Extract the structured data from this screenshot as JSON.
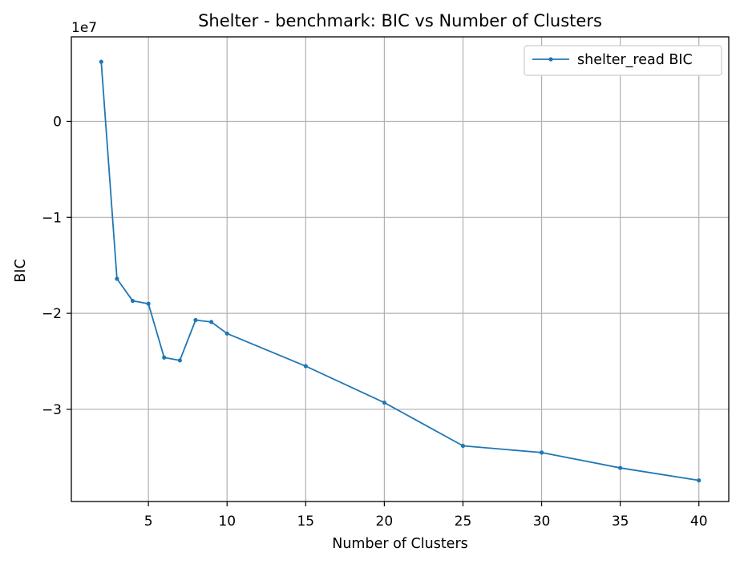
{
  "chart_data": {
    "type": "line",
    "title": "Shelter - benchmark: BIC vs Number of Clusters",
    "xlabel": "Number of Clusters",
    "ylabel": "BIC",
    "y_offset_label": "1e7",
    "xlim": [
      0.1,
      41.9
    ],
    "ylim": [
      -39.6,
      8.8
    ],
    "x_ticks": [
      5,
      10,
      15,
      20,
      25,
      30,
      35,
      40
    ],
    "x_tick_labels": [
      "5",
      "10",
      "15",
      "20",
      "25",
      "30",
      "35",
      "40"
    ],
    "y_ticks": [
      0,
      -10,
      -20,
      -30
    ],
    "y_tick_labels": [
      "0",
      "−1",
      "−2",
      "−3"
    ],
    "y_unit_note": "values in units of 1e6 (axis shows 1e7 scale)",
    "grid": true,
    "legend_position": "top-right",
    "series": [
      {
        "name": "shelter_read BIC",
        "color": "#1f77b4",
        "x": [
          2,
          3,
          4,
          5,
          6,
          7,
          8,
          9,
          10,
          15,
          20,
          25,
          30,
          35,
          40
        ],
        "y": [
          6.2,
          -16.4,
          -18.7,
          -19.0,
          -24.6,
          -24.9,
          -20.7,
          -20.9,
          -22.1,
          -25.5,
          -29.3,
          -33.8,
          -34.5,
          -36.1,
          -37.4
        ]
      }
    ]
  }
}
